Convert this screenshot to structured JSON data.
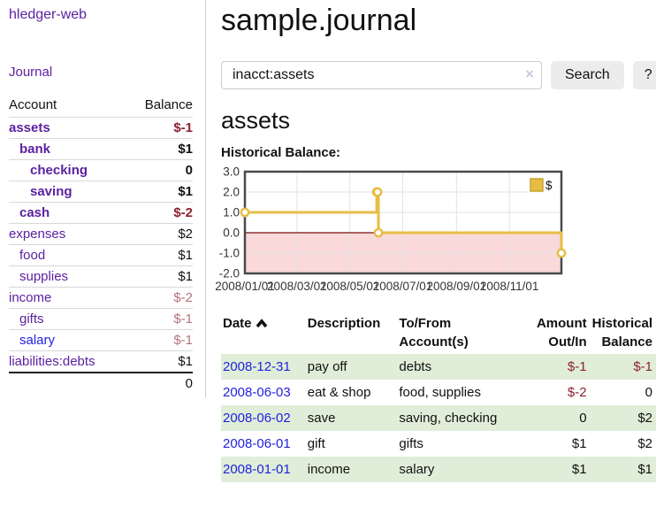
{
  "app": {
    "title": "hledger-web"
  },
  "sidebar": {
    "journal_link": "Journal",
    "accounts_header": {
      "account": "Account",
      "balance": "Balance"
    },
    "accounts": [
      {
        "name": "assets",
        "balance": "$-1",
        "indent": 0,
        "bold": true
      },
      {
        "name": "bank",
        "balance": "$1",
        "indent": 1,
        "bold": true
      },
      {
        "name": "checking",
        "balance": "0",
        "indent": 2,
        "bold": true
      },
      {
        "name": "saving",
        "balance": "$1",
        "indent": 2,
        "bold": true
      },
      {
        "name": "cash",
        "balance": "$-2",
        "indent": 1,
        "bold": true
      },
      {
        "name": "expenses",
        "balance": "$2",
        "indent": 0,
        "bold": false
      },
      {
        "name": "food",
        "balance": "$1",
        "indent": 1,
        "bold": false
      },
      {
        "name": "supplies",
        "balance": "$1",
        "indent": 1,
        "bold": false
      },
      {
        "name": "income",
        "balance": "$-2",
        "indent": 0,
        "bold": false
      },
      {
        "name": "gifts",
        "balance": "$-1",
        "indent": 1,
        "bold": false
      },
      {
        "name": "salary",
        "balance": "$-1",
        "indent": 1,
        "bold": false,
        "link_style": "blue"
      },
      {
        "name": "liabilities:debts",
        "balance": "$1",
        "indent": 0,
        "bold": false
      }
    ],
    "total": "0"
  },
  "header": {
    "title": "sample.journal"
  },
  "search": {
    "value": "inacct:assets",
    "clear_icon": "×",
    "button_label": "Search",
    "help_label": "?"
  },
  "register": {
    "heading": "assets",
    "chart_label": "Historical Balance:",
    "table": {
      "headers": {
        "date": "Date",
        "description": "Description",
        "accounts": "To/From Account(s)",
        "amount": "Amount Out/In",
        "balance": "Historical Balance"
      },
      "rows": [
        {
          "date": "2008-12-31",
          "description": "pay off",
          "accounts": "debts",
          "amount": "$-1",
          "balance": "$-1"
        },
        {
          "date": "2008-06-03",
          "description": "eat & shop",
          "accounts": "food, supplies",
          "amount": "$-2",
          "balance": "0"
        },
        {
          "date": "2008-06-02",
          "description": "save",
          "accounts": "saving, checking",
          "amount": "0",
          "balance": "$2"
        },
        {
          "date": "2008-06-01",
          "description": "gift",
          "accounts": "gifts",
          "amount": "$1",
          "balance": "$2"
        },
        {
          "date": "2008-01-01",
          "description": "income",
          "accounts": "salary",
          "amount": "$1",
          "balance": "$1"
        }
      ]
    }
  },
  "chart_data": {
    "type": "line",
    "title": "Historical Balance",
    "step": true,
    "series": [
      {
        "name": "$",
        "color": "#e7bd45",
        "points": [
          [
            "2008-01-01",
            1
          ],
          [
            "2008-06-01",
            2
          ],
          [
            "2008-06-02",
            2
          ],
          [
            "2008-06-03",
            0
          ],
          [
            "2008-12-31",
            -1
          ]
        ]
      }
    ],
    "xlim": [
      "2008-01-01",
      "2008-12-31"
    ],
    "ylim": [
      -2,
      3
    ],
    "ytick_values": [
      3,
      2,
      1,
      0,
      -1,
      -2
    ],
    "ytick_labels": [
      "3.0",
      "2.0",
      "1.0",
      "0.0",
      "-1.0",
      "-2.0"
    ],
    "xtick_values": [
      "2008-01-01",
      "2008-03-01",
      "2008-05-01",
      "2008-07-01",
      "2008-09-01",
      "2008-11-01"
    ],
    "xtick_labels": [
      "2008/01/01",
      "2008/03/01",
      "2008/05/01",
      "2008/07/01",
      "2008/09/01",
      "2008/11/01"
    ],
    "legend": {
      "position": "top-right",
      "entries": [
        {
          "label": "$",
          "color": "#e7bd45",
          "border": "#c9a42c"
        }
      ]
    },
    "grid": true,
    "negative_region_color": "#f9d9d9",
    "zero_line_color": "#7a0f0f",
    "grid_color": "#e3e3e3",
    "border_color": "#4a4a4a"
  },
  "colors": {
    "link-purple": "#5c21a1",
    "link-blue": "#2222dd",
    "neg-strong": "#8e1f2f",
    "neg-muted": "#b4707e",
    "row-green": "#e0eed9"
  }
}
